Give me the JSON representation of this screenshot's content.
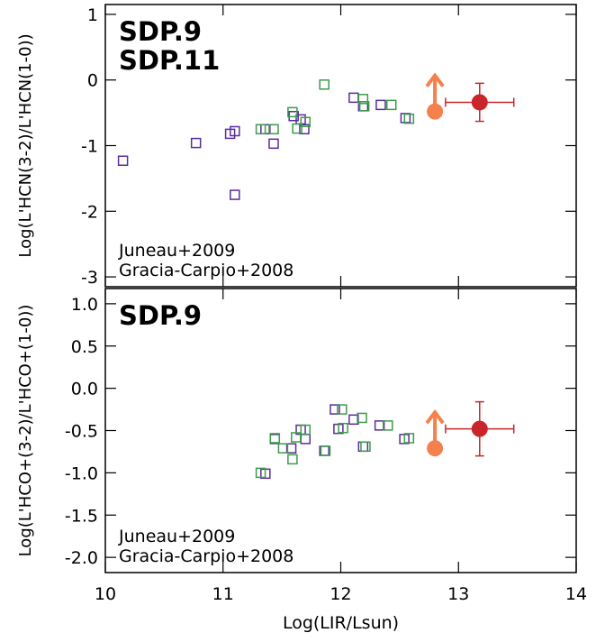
{
  "chart_data": [
    {
      "type": "scatter",
      "ylabel": "Log(L'HCN(3-2)/L'HCN(1-0))",
      "xlim": [
        10,
        14
      ],
      "xticks": [
        10,
        11,
        12,
        13,
        14
      ],
      "ylim": [
        -3.15,
        1.15
      ],
      "yticks": [
        -3,
        -2,
        -1,
        0,
        1
      ],
      "series": [
        {
          "name": "Juneau+2009",
          "color": "#5b2c9c",
          "marker": "square",
          "x": [
            10.15,
            10.77,
            11.06,
            11.1,
            11.1,
            11.36,
            11.43,
            11.6,
            11.66,
            11.69,
            12.11,
            12.19,
            12.34,
            12.55
          ],
          "values": [
            -1.23,
            -0.96,
            -0.82,
            -0.78,
            -1.75,
            -0.75,
            -0.97,
            -0.55,
            -0.6,
            -0.75,
            -0.27,
            -0.4,
            -0.38,
            -0.58
          ]
        },
        {
          "name": "Gracia-Carpio+2008",
          "color": "#3c9c4c",
          "marker": "square",
          "x": [
            11.32,
            11.43,
            11.59,
            11.63,
            11.7,
            11.86,
            12.19,
            12.2,
            12.43,
            12.58
          ],
          "values": [
            -0.75,
            -0.75,
            -0.49,
            -0.74,
            -0.64,
            -0.07,
            -0.29,
            -0.4,
            -0.38,
            -0.59
          ]
        },
        {
          "name": "SDP.9",
          "color": "#c8262a",
          "marker": "circle",
          "x": [
            13.18
          ],
          "values": [
            -0.34
          ],
          "xerr": [
            0.29
          ],
          "yerr": [
            0.29
          ]
        },
        {
          "name": "SDP.11",
          "color": "#f4804c",
          "marker": "circle",
          "lower_limit": true,
          "x": [
            12.8
          ],
          "values": [
            -0.48
          ]
        }
      ]
    },
    {
      "type": "scatter",
      "ylabel": "Log(L'HCO+(3-2)/L'HCO+(1-0))",
      "xlabel": "Log(LIR/Lsun)",
      "xlim": [
        10,
        14
      ],
      "xticks": [
        10,
        11,
        12,
        13,
        14
      ],
      "ylim": [
        -2.18,
        1.18
      ],
      "yticks": [
        {
          "value": -2.0,
          "label": "-2.0"
        },
        {
          "value": -1.5,
          "label": "-1.5"
        },
        {
          "value": -1.0,
          "label": "-1.0"
        },
        {
          "value": -0.5,
          "label": "-0.5"
        },
        {
          "value": 0.0,
          "label": "0.0"
        },
        {
          "value": 0.5,
          "label": "0.5"
        },
        {
          "value": 1.0,
          "label": "1.0"
        }
      ],
      "series": [
        {
          "name": "Juneau+2009",
          "color": "#5b2c9c",
          "marker": "square",
          "x": [
            11.36,
            11.44,
            11.58,
            11.66,
            11.7,
            11.86,
            11.95,
            11.98,
            12.11,
            12.19,
            12.33,
            12.54
          ],
          "values": [
            -1.01,
            -0.6,
            -0.71,
            -0.49,
            -0.6,
            -0.74,
            -0.25,
            -0.48,
            -0.37,
            -0.69,
            -0.44,
            -0.6
          ]
        },
        {
          "name": "Gracia-Carpio+2008",
          "color": "#3c9c4c",
          "marker": "square",
          "x": [
            11.32,
            11.44,
            11.51,
            11.59,
            11.62,
            11.7,
            11.87,
            12.01,
            12.02,
            12.18,
            12.21,
            12.4,
            12.58
          ],
          "values": [
            -1.0,
            -0.59,
            -0.71,
            -0.84,
            -0.58,
            -0.49,
            -0.74,
            -0.25,
            -0.47,
            -0.35,
            -0.69,
            -0.44,
            -0.59
          ]
        },
        {
          "name": "SDP.9",
          "color": "#c8262a",
          "marker": "circle",
          "x": [
            13.18
          ],
          "values": [
            -0.48
          ],
          "xerr": [
            0.29
          ],
          "yerr": [
            0.32
          ]
        },
        {
          "color": "#f4804c",
          "marker": "circle",
          "lower_limit": true,
          "x": [
            12.8
          ],
          "values": [
            -0.71
          ]
        }
      ]
    }
  ]
}
